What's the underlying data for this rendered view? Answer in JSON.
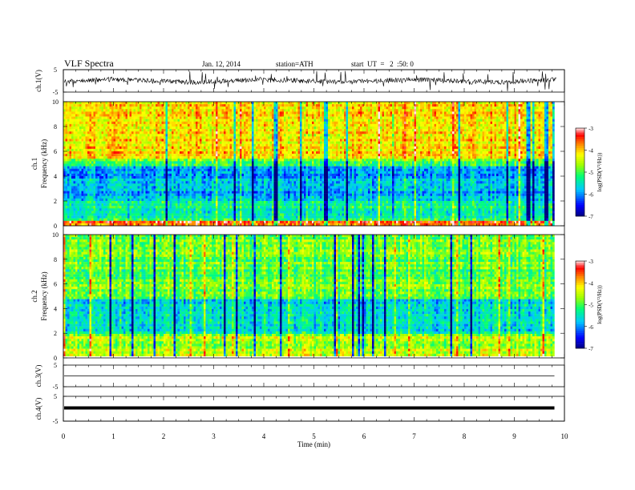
{
  "header": {
    "title": "VLF Spectra",
    "date": "Jan. 12, 2014",
    "station": "station=ATH",
    "start": "start  UT  =   2  :50: 0"
  },
  "chart_data": [
    {
      "type": "line",
      "name": "ch1-waveform",
      "ylabel": "ch.1(V)",
      "ylim": [
        -5,
        5
      ],
      "yticks": [
        "5",
        "-5"
      ],
      "xlim": [
        0,
        10
      ],
      "trace_baseline": 0,
      "trace_spike_range": [
        -5,
        5
      ]
    },
    {
      "type": "heatmap",
      "name": "ch1-spectrogram",
      "ylabel": "ch.1\nFrequency (kHz)",
      "ylim": [
        0,
        10
      ],
      "yticks": [
        "0",
        "2",
        "4",
        "6",
        "8",
        "10"
      ],
      "xlim": [
        0,
        9.8
      ],
      "colorbar": {
        "label": "log(PSD(V²/Hz))",
        "range": [
          -7,
          -3
        ],
        "ticks": [
          "-3",
          "-4",
          "-5",
          "-6",
          "-7"
        ]
      },
      "bands_khz_log_psd": [
        {
          "from": 0,
          "to": 0.5,
          "level": -3.6
        },
        {
          "from": 0.5,
          "to": 2.0,
          "level": -5.3
        },
        {
          "from": 2.0,
          "to": 4.7,
          "level": -5.8
        },
        {
          "from": 4.7,
          "to": 5.5,
          "level": -5.0
        },
        {
          "from": 5.5,
          "to": 10,
          "level": -4.1
        }
      ]
    },
    {
      "type": "heatmap",
      "name": "ch2-spectrogram",
      "ylabel": "ch.2\nFrequency (kHz)",
      "ylim": [
        0,
        10
      ],
      "yticks": [
        "0",
        "2",
        "4",
        "6",
        "8",
        "10"
      ],
      "xlim": [
        0,
        9.8
      ],
      "colorbar": {
        "label": "log(PSD(V²/Hz))",
        "range": [
          -7,
          -3
        ],
        "ticks": [
          "-3",
          "-4",
          "-5",
          "-6",
          "-7"
        ]
      },
      "bands_khz_log_psd": [
        {
          "from": 0,
          "to": 2.0,
          "level": -4.6
        },
        {
          "from": 2.0,
          "to": 4.8,
          "level": -5.6
        },
        {
          "from": 4.8,
          "to": 10,
          "level": -4.9
        }
      ]
    },
    {
      "type": "line",
      "name": "ch3-waveform",
      "ylabel": "ch.3(V)",
      "ylim": [
        -5,
        5
      ],
      "yticks": [
        "5",
        "-5"
      ],
      "xlim": [
        0,
        9.8
      ],
      "trace_value": 0
    },
    {
      "type": "line",
      "name": "ch4-waveform",
      "ylabel": "ch.4(V)",
      "ylim": [
        -5,
        5
      ],
      "yticks": [
        "5",
        "-5"
      ],
      "xlim": [
        0,
        9.8
      ],
      "trace_value": 0
    }
  ],
  "xaxis": {
    "label": "Time (min)",
    "ticks": [
      "0",
      "1",
      "2",
      "3",
      "4",
      "5",
      "6",
      "7",
      "8",
      "9",
      "10"
    ],
    "range": [
      0,
      10
    ]
  }
}
